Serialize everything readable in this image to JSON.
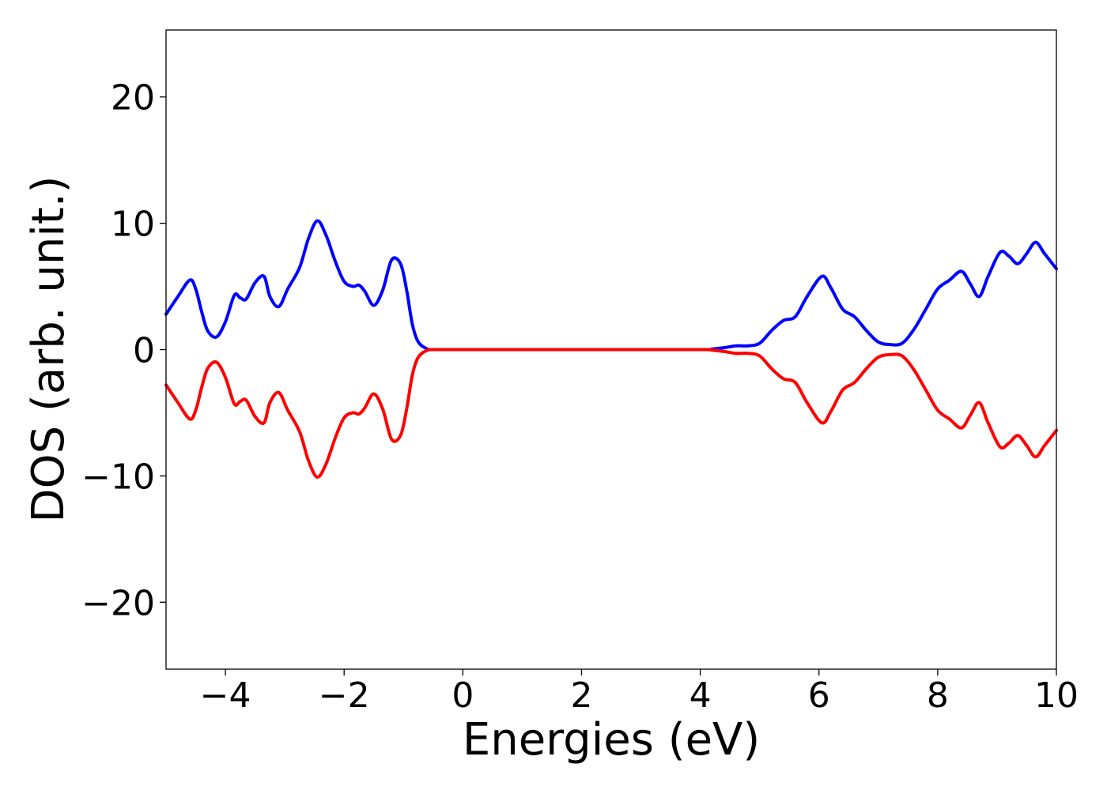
{
  "chart_data": {
    "type": "line",
    "title": "",
    "xlabel": "Energies (eV)",
    "ylabel": "DOS (arb. unit.)",
    "xlim": [
      -5,
      10
    ],
    "ylim": [
      -25.3,
      25.3
    ],
    "x_ticks": [
      -4,
      -2,
      0,
      2,
      4,
      6,
      8,
      10
    ],
    "y_ticks": [
      -20,
      -10,
      0,
      10,
      20
    ],
    "grid": false,
    "legend": "none",
    "series": [
      {
        "color": "#0000ff",
        "x": [
          -5.0,
          -4.8,
          -4.6,
          -4.5,
          -4.4,
          -4.3,
          -4.15,
          -4.0,
          -3.85,
          -3.75,
          -3.65,
          -3.5,
          -3.35,
          -3.25,
          -3.1,
          -2.95,
          -2.75,
          -2.6,
          -2.45,
          -2.3,
          -2.15,
          -2.0,
          -1.85,
          -1.75,
          -1.65,
          -1.5,
          -1.35,
          -1.2,
          -1.05,
          -0.95,
          -0.85,
          -0.75,
          -0.6,
          -0.5,
          0.0,
          2.0,
          4.0,
          4.2,
          4.4,
          4.6,
          4.8,
          5.0,
          5.2,
          5.4,
          5.6,
          5.8,
          6.05,
          6.2,
          6.4,
          6.6,
          6.8,
          7.0,
          7.2,
          7.4,
          7.6,
          7.8,
          8.0,
          8.2,
          8.4,
          8.55,
          8.7,
          8.85,
          9.05,
          9.2,
          9.35,
          9.5,
          9.65,
          9.8,
          10.0
        ],
        "y": [
          2.8,
          4.2,
          5.5,
          4.8,
          3.0,
          1.5,
          1.0,
          2.2,
          4.3,
          4.1,
          4.0,
          5.3,
          5.8,
          4.2,
          3.4,
          4.8,
          6.5,
          8.8,
          10.2,
          9.0,
          7.0,
          5.4,
          5.0,
          5.1,
          4.6,
          3.5,
          4.7,
          7.1,
          6.8,
          4.8,
          2.0,
          0.6,
          0.05,
          0.0,
          0.0,
          0.0,
          0.0,
          0.05,
          0.15,
          0.3,
          0.3,
          0.5,
          1.5,
          2.3,
          2.6,
          4.2,
          5.8,
          4.9,
          3.2,
          2.6,
          1.5,
          0.6,
          0.4,
          0.5,
          1.6,
          3.2,
          4.8,
          5.5,
          6.2,
          5.2,
          4.2,
          5.8,
          7.7,
          7.4,
          6.8,
          7.6,
          8.5,
          7.6,
          6.4
        ]
      },
      {
        "color": "#ff0000",
        "x": [
          -5.0,
          -4.8,
          -4.6,
          -4.5,
          -4.4,
          -4.3,
          -4.15,
          -4.0,
          -3.85,
          -3.75,
          -3.65,
          -3.5,
          -3.35,
          -3.25,
          -3.1,
          -2.95,
          -2.75,
          -2.6,
          -2.45,
          -2.3,
          -2.15,
          -2.0,
          -1.85,
          -1.75,
          -1.65,
          -1.5,
          -1.35,
          -1.2,
          -1.05,
          -0.95,
          -0.85,
          -0.75,
          -0.6,
          -0.5,
          0.0,
          2.0,
          4.0,
          4.2,
          4.4,
          4.6,
          4.8,
          5.0,
          5.2,
          5.4,
          5.6,
          5.8,
          6.05,
          6.2,
          6.4,
          6.6,
          6.8,
          7.0,
          7.2,
          7.4,
          7.6,
          7.8,
          8.0,
          8.2,
          8.4,
          8.55,
          8.7,
          8.85,
          9.05,
          9.2,
          9.35,
          9.5,
          9.65,
          9.8,
          10.0
        ],
        "y": [
          -2.8,
          -4.2,
          -5.5,
          -4.8,
          -3.0,
          -1.5,
          -1.0,
          -2.2,
          -4.3,
          -4.1,
          -4.0,
          -5.3,
          -5.8,
          -4.2,
          -3.4,
          -4.8,
          -6.5,
          -8.8,
          -10.1,
          -9.0,
          -7.0,
          -5.4,
          -5.0,
          -5.1,
          -4.6,
          -3.5,
          -4.7,
          -7.1,
          -6.8,
          -4.8,
          -2.0,
          -0.6,
          -0.05,
          0.0,
          0.0,
          0.0,
          0.0,
          -0.05,
          -0.15,
          -0.3,
          -0.3,
          -0.5,
          -1.5,
          -2.3,
          -2.6,
          -4.2,
          -5.8,
          -4.9,
          -3.2,
          -2.6,
          -1.5,
          -0.6,
          -0.4,
          -0.5,
          -1.6,
          -3.2,
          -4.8,
          -5.5,
          -6.2,
          -5.2,
          -4.2,
          -5.8,
          -7.7,
          -7.4,
          -6.8,
          -7.6,
          -8.5,
          -7.6,
          -6.4
        ]
      }
    ]
  }
}
